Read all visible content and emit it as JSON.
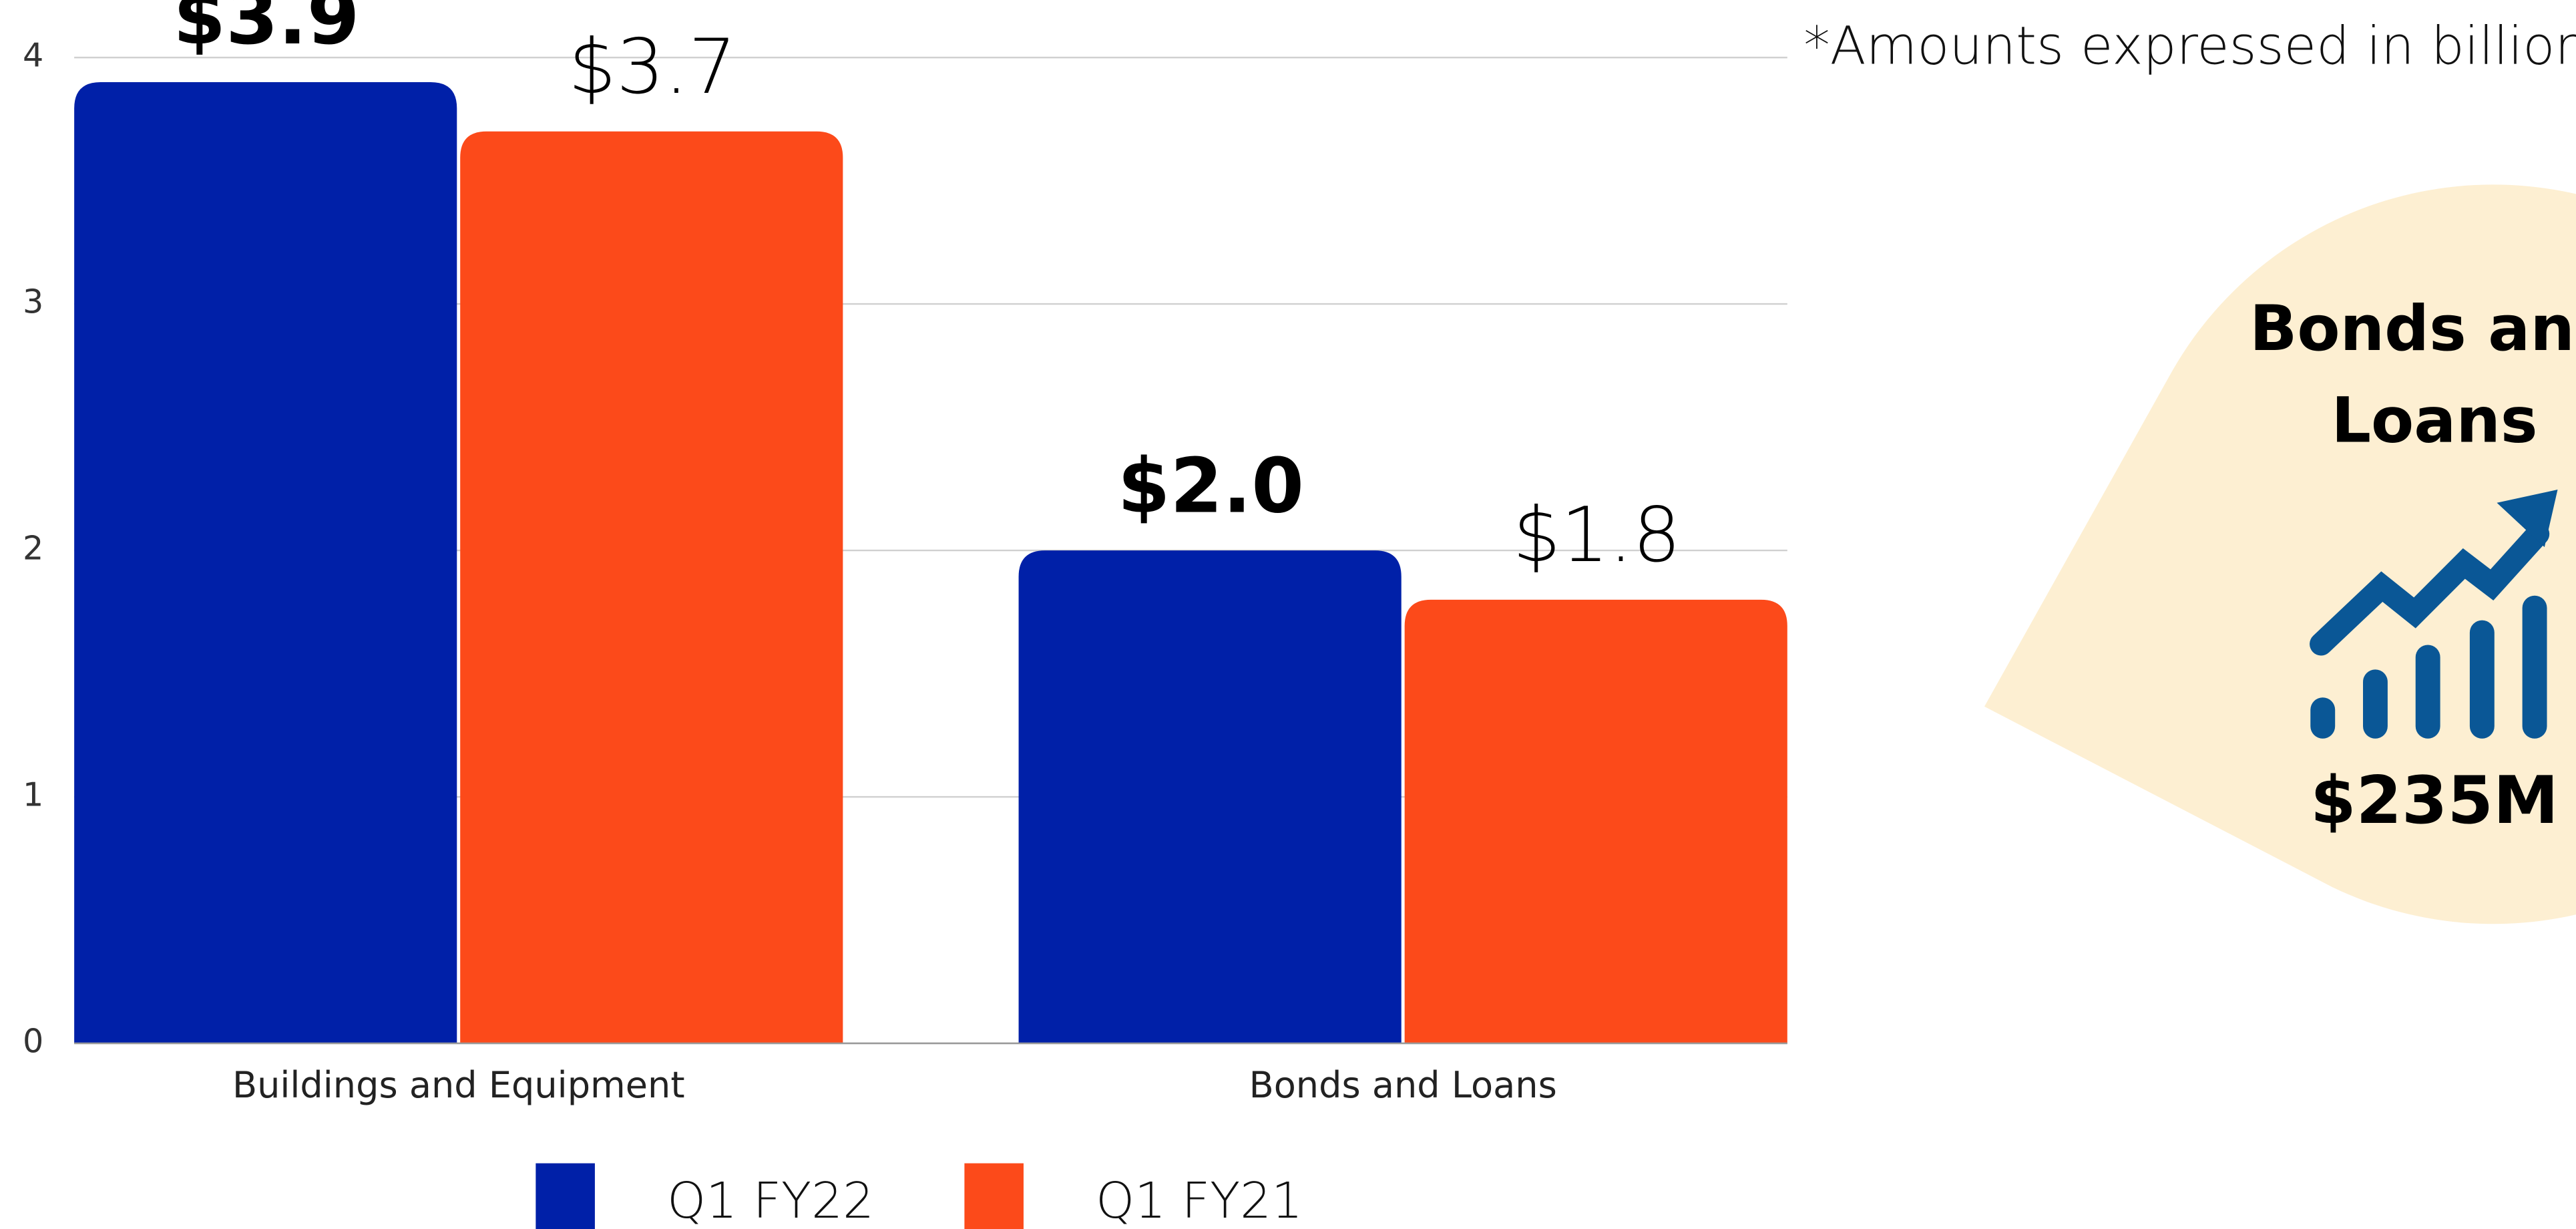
{
  "chart_data": {
    "type": "bar",
    "categories": [
      "Buildings and Equipment",
      "Bonds and Loans"
    ],
    "series": [
      {
        "name": "Q1 FY22",
        "color": "#0020a8",
        "values": [
          3.9,
          2.0
        ],
        "value_labels": [
          "$3.9",
          "$2.0"
        ]
      },
      {
        "name": "Q1 FY21",
        "color": "#fc4a1a",
        "values": [
          3.7,
          1.8
        ],
        "value_labels": [
          "$3.7",
          "$1.8"
        ]
      }
    ],
    "ylim": [
      0,
      4
    ],
    "yticks": [
      0,
      1,
      2,
      3,
      4
    ],
    "grid": true,
    "legend": "bottom",
    "note": "*Amounts expressed in billions",
    "callout": {
      "title": "Bonds and Loans",
      "value": "$235M"
    }
  }
}
